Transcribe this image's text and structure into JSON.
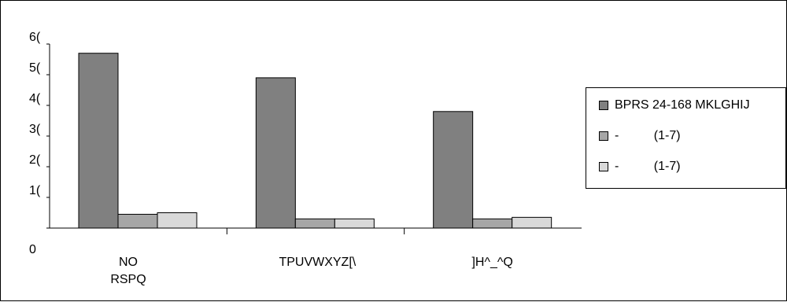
{
  "chart_data": {
    "type": "bar",
    "categories": [
      [
        "NO",
        "RSPQ"
      ],
      [
        "TPUVWXYZ[\\"
      ],
      [
        "]H^_^Q"
      ]
    ],
    "series": [
      {
        "name": "BPRS 24-168 MKLGHIJ",
        "color": "#808080",
        "values": [
          57,
          49,
          38
        ]
      },
      {
        "name": "-          (1-7)",
        "color": "#a6a6a6",
        "values": [
          4.5,
          3.0,
          3.0
        ]
      },
      {
        "name": "-          (1-7)",
        "color": "#d9d9d9",
        "values": [
          5.0,
          3.0,
          3.5
        ]
      }
    ],
    "y_tick_labels": [
      "0",
      "1(",
      "2(",
      "3(",
      "4(",
      "5(",
      "6("
    ],
    "ylim": [
      0,
      60
    ],
    "ytick_step": 10,
    "legend_position": "right",
    "grid": false
  }
}
